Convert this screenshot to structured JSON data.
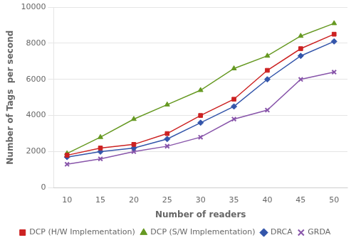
{
  "chart_data": {
    "type": "line",
    "x": [
      10,
      15,
      20,
      25,
      30,
      35,
      40,
      45,
      50
    ],
    "series": [
      {
        "name": "DCP (H/W Implementation)",
        "color": "#cc2222",
        "marker": "square",
        "values": [
          1800,
          2200,
          2400,
          3000,
          4000,
          4900,
          6500,
          7700,
          8500
        ]
      },
      {
        "name": "DCP (S/W Implementation)",
        "color": "#669922",
        "marker": "triangle",
        "values": [
          1900,
          2800,
          3800,
          4600,
          5400,
          6600,
          7300,
          8400,
          9100
        ]
      },
      {
        "name": "DRCA",
        "color": "#3355aa",
        "marker": "diamond",
        "values": [
          1700,
          2000,
          2200,
          2700,
          3600,
          4500,
          6000,
          7300,
          8100
        ]
      },
      {
        "name": "GRDA",
        "color": "#8855aa",
        "marker": "x",
        "values": [
          1300,
          1600,
          2000,
          2300,
          2800,
          3800,
          4300,
          6000,
          6400
        ]
      }
    ],
    "x_label": "Number of readers",
    "y_label": "Number of Tags  per second",
    "xlim": [
      8,
      52
    ],
    "xticks": [
      10,
      15,
      20,
      25,
      30,
      35,
      40,
      45,
      50
    ],
    "ylim": [
      0,
      10000
    ],
    "yticks": [
      0,
      2000,
      4000,
      6000,
      8000,
      10000
    ],
    "grid": "y",
    "legend": "bottom"
  }
}
